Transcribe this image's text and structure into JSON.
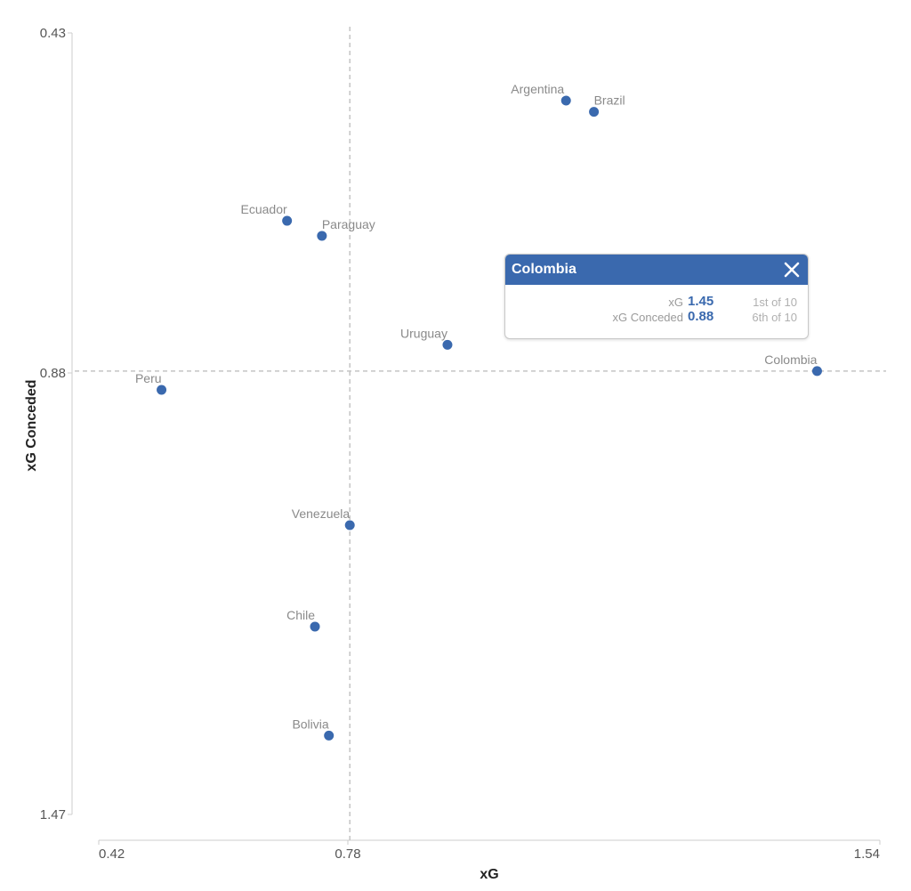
{
  "chart_data": {
    "type": "scatter",
    "xlabel": "xG",
    "ylabel": "xG Conceded",
    "xlim": [
      0.42,
      1.54
    ],
    "ylim": [
      0.43,
      1.47
    ],
    "y_inverted": true,
    "x_ticks": [
      "0.42",
      "0.78",
      "1.54"
    ],
    "y_ticks": [
      "0.43",
      "0.88",
      "1.47"
    ],
    "reference_lines": {
      "x": 0.78,
      "y": 0.88
    },
    "point_color": "#3a69ae",
    "points": [
      {
        "name": "Argentina",
        "x": 1.09,
        "y": 0.52
      },
      {
        "name": "Brazil",
        "x": 1.13,
        "y": 0.535
      },
      {
        "name": "Ecuador",
        "x": 0.69,
        "y": 0.68
      },
      {
        "name": "Paraguay",
        "x": 0.74,
        "y": 0.7
      },
      {
        "name": "Uruguay",
        "x": 0.92,
        "y": 0.845
      },
      {
        "name": "Colombia",
        "x": 1.45,
        "y": 0.88
      },
      {
        "name": "Peru",
        "x": 0.51,
        "y": 0.905
      },
      {
        "name": "Venezuela",
        "x": 0.78,
        "y": 1.085
      },
      {
        "name": "Chile",
        "x": 0.73,
        "y": 1.22
      },
      {
        "name": "Bolivia",
        "x": 0.75,
        "y": 1.365
      }
    ]
  },
  "tooltip": {
    "title": "Colombia",
    "rows": [
      {
        "label": "xG",
        "value": "1.45",
        "rank": "1st of 10"
      },
      {
        "label": "xG Conceded",
        "value": "0.88",
        "rank": "6th of 10"
      }
    ]
  }
}
